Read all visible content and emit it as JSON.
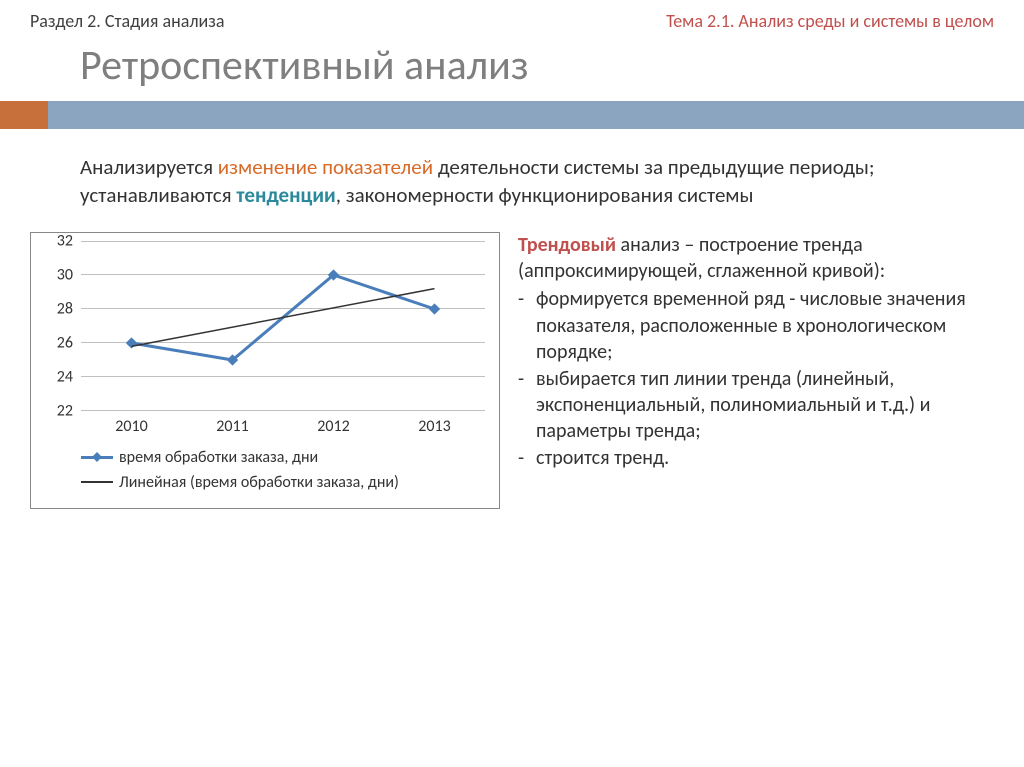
{
  "header": {
    "section": "Раздел 2. Стадия анализа",
    "topic": "Тема 2.1. Анализ среды и системы в целом"
  },
  "title": "Ретроспективный анализ",
  "colors": {
    "bar_main": "#8ba4bf",
    "bar_accent": "#c7703b",
    "title_text": "#7f7f7f",
    "hl_orange": "#d86a28",
    "hl_teal": "#2a8a9c",
    "hl_red": "#c0504d"
  },
  "description": {
    "pre": "Анализируется ",
    "hl1": "изменение показателей",
    "mid": " деятельности системы за предыдущие периоды; устанавливаются ",
    "hl2": "тенденции",
    "post": ", закономерности функционирования системы"
  },
  "chart": {
    "type": "line",
    "x_categories": [
      "2010",
      "2011",
      "2012",
      "2013"
    ],
    "y_ticks": [
      22,
      24,
      26,
      28,
      30,
      32
    ],
    "ylim": [
      22,
      32
    ],
    "series": {
      "name": "время обработки заказа, дни",
      "values": [
        26,
        25,
        30,
        28
      ],
      "color": "#4a7ebb",
      "line_width": 3,
      "marker": "diamond"
    },
    "trendline": {
      "name": "Линейная (время обработки заказа, дни)",
      "start_y": 25.8,
      "end_y": 29.2,
      "color": "#333333",
      "line_width": 1.5
    },
    "grid_color": "#c0c0c0",
    "axis_font_size": 16
  },
  "right": {
    "trend_label": "Трендовый",
    "trend_rest": " анализ – построение тренда (аппроксимирующей, сглаженной кривой):",
    "bullets": [
      "формируется временной ряд - числовые значения показателя, расположенные в хронологическом порядке;",
      "выбирается тип линии тренда (линейный, экспоненциальный, полиномиальный и т.д.) и параметры тренда;",
      "строится тренд."
    ]
  }
}
